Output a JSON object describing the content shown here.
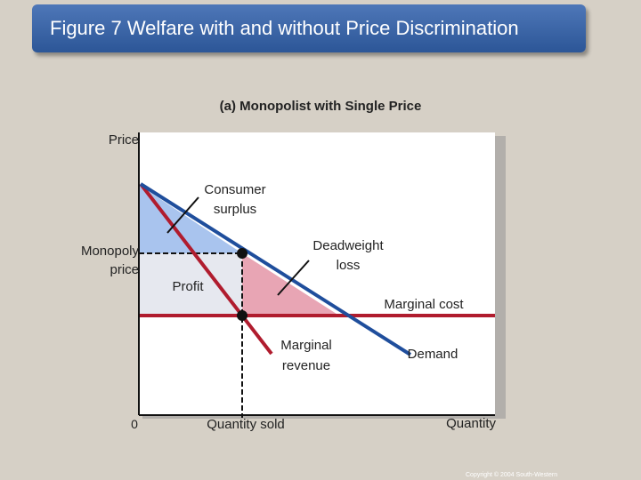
{
  "title": "Figure 7 Welfare with and without Price Discrimination",
  "panel_title": "(a) Monopolist with Single Price",
  "axis_labels": {
    "y": "Price",
    "x": "Quantity",
    "origin": "0"
  },
  "labels": {
    "consumer_surplus": [
      "Consumer",
      "surplus"
    ],
    "deadweight_loss": [
      "Deadweight",
      "loss"
    ],
    "monopoly_price": [
      "Monopoly",
      "price"
    ],
    "profit": "Profit",
    "marginal_cost": "Marginal cost",
    "marginal_revenue": [
      "Marginal",
      "revenue"
    ],
    "demand": "Demand",
    "quantity_sold": "Quantity sold"
  },
  "colors": {
    "demand": "#1f4e9c",
    "marginal_revenue": "#b01c2e",
    "marginal_cost": "#b01c2e",
    "consumer_surplus": "#a9c4ee",
    "deadweight_loss": "#e8a5b4",
    "profit": "#e6e8ef",
    "title_bar": "#3a64a8"
  },
  "copyright": "Copyright © 2004 South-Western"
}
